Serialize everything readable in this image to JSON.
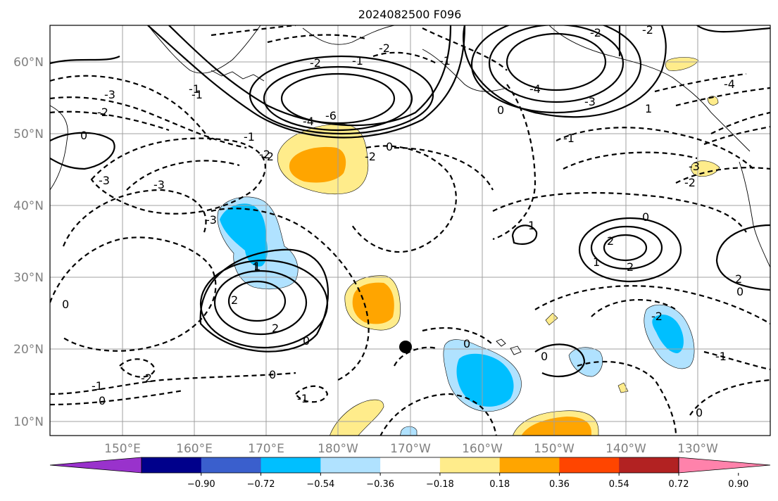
{
  "title": "2024082500 F096",
  "lat_labels": [
    "60°N",
    "50°N",
    "40°N",
    "30°N",
    "20°N",
    "10°N"
  ],
  "lon_labels": [
    "150°E",
    "160°E",
    "170°E",
    "180°W",
    "170°W",
    "160°W",
    "150°W",
    "140°W",
    "130°W"
  ],
  "colorbar": {
    "colors": [
      "#9932cc",
      "#00008b",
      "#3a5fcd",
      "#00bfff",
      "#b0e2ff",
      "#ffffff",
      "#ffec8b",
      "#ffa500",
      "#ff4500",
      "#b22222",
      "#ff82ab"
    ],
    "tick_labels": [
      "−0.90",
      "−0.72",
      "−0.54",
      "−0.36",
      "−0.18",
      "0.18",
      "0.36",
      "0.54",
      "0.72",
      "0.90"
    ]
  },
  "contour_labels": [
    "-3",
    "-2",
    "-1",
    "0",
    "-2",
    "-3",
    "-4",
    "-6",
    "-2",
    "-1",
    "-2",
    "-2",
    "-3",
    "-2",
    "-4",
    "-4",
    "-3",
    "-2",
    "-1",
    "0",
    "1",
    "0",
    "1",
    "-1",
    "-3",
    "-2",
    "-1",
    "0",
    "2",
    "-2",
    "-3",
    "1",
    "2",
    "2",
    "0",
    "-1",
    "-2",
    "0",
    "0",
    "-1",
    "0",
    "2",
    "1",
    "2",
    "0",
    "0",
    "1",
    "0",
    "-1",
    "-2",
    "0",
    "-1"
  ],
  "marker": {
    "label": "storm-center",
    "color": "#000000"
  }
}
